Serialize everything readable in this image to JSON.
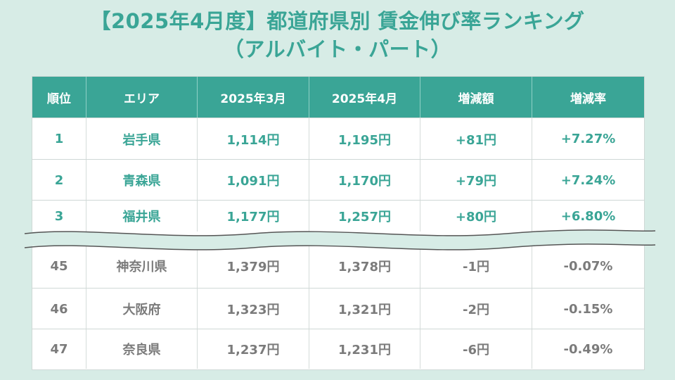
{
  "title": {
    "line1": "【2025年4月度】都道府県別 賃金伸び率ランキング",
    "line2": "（アルバイト・パート）"
  },
  "table": {
    "headers": [
      "順位",
      "エリア",
      "2025年3月",
      "2025年4月",
      "増減額",
      "増減率"
    ],
    "top_rows": [
      [
        "1",
        "岩手県",
        "1,114円",
        "1,195円",
        "+81円",
        "+7.27%"
      ],
      [
        "2",
        "青森県",
        "1,091円",
        "1,170円",
        "+79円",
        "+7.24%"
      ],
      [
        "3",
        "福井県",
        "1,177円",
        "1,257円",
        "+80円",
        "+6.80%"
      ]
    ],
    "bottom_rows": [
      [
        "45",
        "神奈川県",
        "1,379円",
        "1,378円",
        "-1円",
        "-0.07%"
      ],
      [
        "46",
        "大阪府",
        "1,323円",
        "1,321円",
        "-2円",
        "-0.15%"
      ],
      [
        "47",
        "奈良県",
        "1,237円",
        "1,231円",
        "-6円",
        "-0.49%"
      ]
    ]
  },
  "colors": {
    "accent": "#3aa596",
    "background": "#d7ece6",
    "muted_text": "#7b7b7b"
  }
}
